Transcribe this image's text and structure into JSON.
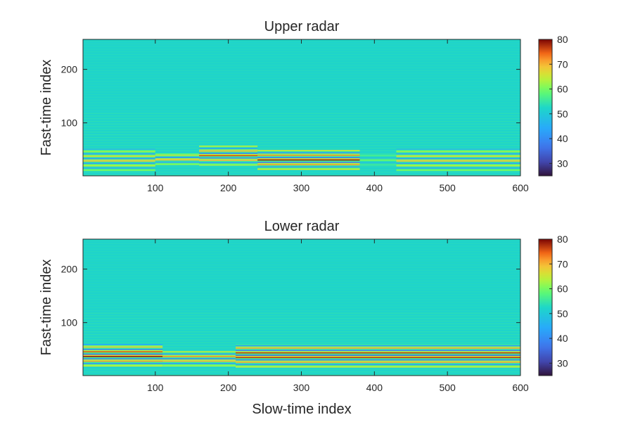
{
  "chart_data": [
    {
      "type": "heatmap",
      "title": "Upper radar",
      "xlabel": "",
      "ylabel": "Fast-time index",
      "xlim": [
        1,
        600
      ],
      "ylim": [
        1,
        256
      ],
      "xticks": [
        100,
        200,
        300,
        400,
        500,
        600
      ],
      "yticks": [
        100,
        200
      ],
      "colorbar": {
        "min": 25,
        "max": 80,
        "ticks": [
          30,
          40,
          50,
          60,
          70,
          80
        ]
      },
      "colormap": "turbo",
      "background_value": 52,
      "bands": [
        {
          "x_start": 1,
          "x_end": 100,
          "y_center": 30,
          "y_span": 40,
          "peak": 70
        },
        {
          "x_start": 100,
          "x_end": 160,
          "y_center": 32,
          "y_span": 22,
          "peak": 72
        },
        {
          "x_start": 160,
          "x_end": 240,
          "y_center": 38,
          "y_span": 36,
          "peak": 76
        },
        {
          "x_start": 240,
          "x_end": 380,
          "y_center": 30,
          "y_span": 36,
          "peak": 79
        },
        {
          "x_start": 380,
          "x_end": 430,
          "y_center": 30,
          "y_span": 20,
          "peak": 60
        },
        {
          "x_start": 430,
          "x_end": 600,
          "y_center": 30,
          "y_span": 40,
          "peak": 70
        }
      ]
    },
    {
      "type": "heatmap",
      "title": "Lower radar",
      "xlabel": "Slow-time index",
      "ylabel": "Fast-time index",
      "xlim": [
        1,
        600
      ],
      "ylim": [
        1,
        256
      ],
      "xticks": [
        100,
        200,
        300,
        400,
        500,
        600
      ],
      "yticks": [
        100,
        200
      ],
      "colorbar": {
        "min": 25,
        "max": 80,
        "ticks": [
          30,
          40,
          50,
          60,
          70,
          80
        ]
      },
      "colormap": "turbo",
      "background_value": 52,
      "bands": [
        {
          "x_start": 1,
          "x_end": 110,
          "y_center": 38,
          "y_span": 40,
          "peak": 80
        },
        {
          "x_start": 110,
          "x_end": 210,
          "y_center": 32,
          "y_span": 28,
          "peak": 75
        },
        {
          "x_start": 210,
          "x_end": 600,
          "y_center": 38,
          "y_span": 44,
          "peak": 80
        }
      ]
    }
  ]
}
